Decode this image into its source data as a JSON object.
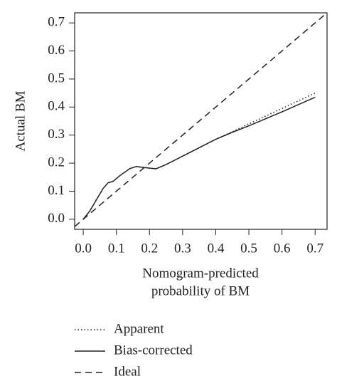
{
  "chart_data": {
    "type": "line",
    "y_label": "Actual BM",
    "x_label": [
      "Nomogram-predicted",
      "probability of BM"
    ],
    "xlim": [
      -0.026,
      0.736
    ],
    "ylim": [
      -0.036,
      0.736
    ],
    "xticks": [
      {
        "value": 0,
        "label": "0.0"
      },
      0.1,
      0.2,
      0.3,
      0.4,
      0.5,
      0.6,
      0.7
    ],
    "yticks": [
      {
        "value": 0,
        "label": "0.0"
      },
      0.1,
      0.2,
      0.3,
      0.4,
      0.5,
      0.6,
      0.7
    ],
    "series": [
      {
        "name": "Apparent",
        "color": "#222222",
        "dash": "dotted",
        "x": [
          0,
          0.02,
          0.04,
          0.06,
          0.075,
          0.09,
          0.11,
          0.14,
          0.16,
          0.18,
          0.2,
          0.22,
          0.25,
          0.3,
          0.35,
          0.4,
          0.45,
          0.5,
          0.6,
          0.7
        ],
        "values": [
          0,
          0.03,
          0.07,
          0.11,
          0.13,
          0.135,
          0.155,
          0.18,
          0.188,
          0.185,
          0.182,
          0.18,
          0.195,
          0.225,
          0.255,
          0.285,
          0.312,
          0.34,
          0.395,
          0.45
        ]
      },
      {
        "name": "Bias-corrected",
        "color": "#222222",
        "dash": "solid",
        "x": [
          0,
          0.02,
          0.04,
          0.06,
          0.075,
          0.09,
          0.11,
          0.14,
          0.16,
          0.18,
          0.2,
          0.22,
          0.25,
          0.3,
          0.35,
          0.4,
          0.45,
          0.5,
          0.6,
          0.7
        ],
        "values": [
          0,
          0.03,
          0.07,
          0.11,
          0.13,
          0.135,
          0.155,
          0.18,
          0.188,
          0.185,
          0.182,
          0.18,
          0.195,
          0.225,
          0.255,
          0.285,
          0.31,
          0.333,
          0.383,
          0.435
        ]
      },
      {
        "name": "Ideal",
        "color": "#222222",
        "dash": "dashed",
        "x": [
          -0.026,
          0.736
        ],
        "values": [
          -0.026,
          0.736
        ]
      }
    ]
  }
}
